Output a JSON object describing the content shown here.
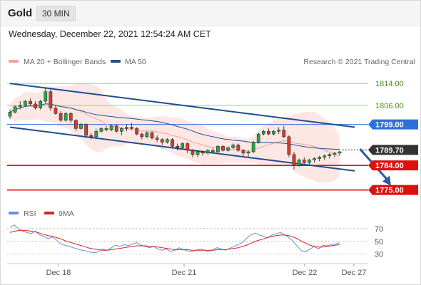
{
  "header": {
    "symbol": "Gold",
    "timeframe": "30 MIN"
  },
  "timestamp": "Wednesday, December 22, 2021 12:54:24 AM CET",
  "legend": {
    "ma_bb": "MA 20 + Bollinger Bands",
    "ma50": "MA 50",
    "credit": "Research © 2021 Trading Central"
  },
  "rsi_legend": {
    "rsi": "RSI",
    "ma": "9MA"
  },
  "colors": {
    "ma_bb": "#f4a29e",
    "ma50": "#1f4e8c",
    "band_fill": "#fde3e1",
    "support": "#e01010",
    "resistance": "#9bcf6b",
    "pivot": "#2e72d9",
    "last": "#333333",
    "arrow": "#2c5aa0",
    "rsi": "#6b8fd6",
    "rsi_ma": "#d62222"
  },
  "chart_data": [
    {
      "type": "candlestick",
      "title": "Gold 30 MIN",
      "x_ticks": [
        "Dec 18",
        "Dec 21",
        "Dec 22",
        "Dec 27"
      ],
      "ylim": [
        1771,
        1819
      ],
      "levels": [
        {
          "label": "1814.00",
          "value": 1814.0,
          "kind": "resistance"
        },
        {
          "label": "1806.00",
          "value": 1806.0,
          "kind": "resistance"
        },
        {
          "label": "1799.00",
          "value": 1799.0,
          "kind": "pivot"
        },
        {
          "label": "1789.70",
          "value": 1789.7,
          "kind": "last"
        },
        {
          "label": "1784.00",
          "value": 1784.0,
          "kind": "support"
        },
        {
          "label": "1775.00",
          "value": 1775.0,
          "kind": "support"
        }
      ],
      "channel": {
        "upper": [
          [
            0,
            1814.0
          ],
          [
            68,
            1798.0
          ]
        ],
        "lower": [
          [
            0,
            1798.0
          ],
          [
            68,
            1782.0
          ]
        ]
      },
      "target_arrow": [
        [
          69,
          1790.0
        ],
        [
          74,
          1775.0
        ]
      ],
      "series": [
        {
          "name": "Gold",
          "ohlc": [
            [
              1802,
              1804.5,
              1801,
              1803.5
            ],
            [
              1803.5,
              1806,
              1803,
              1805.5
            ],
            [
              1805.5,
              1807.5,
              1804.5,
              1806
            ],
            [
              1806,
              1808,
              1805.5,
              1807.5
            ],
            [
              1807.5,
              1808.5,
              1806,
              1806.5
            ],
            [
              1806.5,
              1807.5,
              1804.5,
              1805
            ],
            [
              1805,
              1808,
              1804.5,
              1807.5
            ],
            [
              1807.5,
              1812.5,
              1807,
              1811
            ],
            [
              1811,
              1812,
              1804,
              1805
            ],
            [
              1805,
              1806,
              1802.5,
              1803
            ],
            [
              1803,
              1804,
              1800,
              1800.5
            ],
            [
              1800.5,
              1803.5,
              1800,
              1803
            ],
            [
              1803,
              1803.5,
              1799.5,
              1800.5
            ],
            [
              1800.5,
              1801,
              1796.5,
              1797.5
            ],
            [
              1797.5,
              1799.5,
              1797,
              1799
            ],
            [
              1799,
              1799.5,
              1794,
              1795
            ],
            [
              1795,
              1796,
              1793.5,
              1794.5
            ],
            [
              1794.5,
              1797.5,
              1794,
              1796.5
            ],
            [
              1796.5,
              1798,
              1796,
              1797.5
            ],
            [
              1797.5,
              1798.5,
              1796.5,
              1797
            ],
            [
              1797,
              1799,
              1796.5,
              1798.5
            ],
            [
              1798.5,
              1799,
              1796,
              1796.5
            ],
            [
              1796.5,
              1798,
              1795,
              1797.5
            ],
            [
              1797.5,
              1799,
              1796.5,
              1798
            ],
            [
              1798,
              1799.5,
              1797,
              1797.5
            ],
            [
              1797.5,
              1798,
              1795,
              1795.5
            ],
            [
              1795.5,
              1796,
              1793.5,
              1794.5
            ],
            [
              1794.5,
              1796.5,
              1794,
              1796
            ],
            [
              1796,
              1796.5,
              1793.5,
              1794
            ],
            [
              1794,
              1795,
              1792.5,
              1793.5
            ],
            [
              1793.5,
              1794,
              1791.5,
              1792.5
            ],
            [
              1792.5,
              1794,
              1792,
              1793.5
            ],
            [
              1793.5,
              1794,
              1790.5,
              1791
            ],
            [
              1791,
              1792,
              1789.5,
              1790.5
            ],
            [
              1790.5,
              1792.5,
              1790,
              1792
            ],
            [
              1792,
              1792.5,
              1788.5,
              1789.5
            ],
            [
              1789.5,
              1790,
              1787,
              1788
            ],
            [
              1788,
              1789.5,
              1787,
              1789
            ],
            [
              1789,
              1789.5,
              1787.5,
              1788.5
            ],
            [
              1788.5,
              1790,
              1788,
              1789.5
            ],
            [
              1789.5,
              1790.5,
              1788.5,
              1789
            ],
            [
              1789,
              1791.5,
              1788.5,
              1791
            ],
            [
              1791,
              1791.5,
              1789,
              1789.5
            ],
            [
              1789.5,
              1791,
              1789,
              1790.5
            ],
            [
              1790.5,
              1792,
              1790,
              1791.5
            ],
            [
              1791.5,
              1792,
              1789,
              1789.5
            ],
            [
              1789.5,
              1790,
              1787.5,
              1788.5
            ],
            [
              1788.5,
              1789.5,
              1787,
              1789
            ],
            [
              1789,
              1793,
              1788.5,
              1792.5
            ],
            [
              1792.5,
              1796,
              1792,
              1795.5
            ],
            [
              1795.5,
              1797,
              1795,
              1796.5
            ],
            [
              1796.5,
              1797.5,
              1795,
              1795.5
            ],
            [
              1795.5,
              1797,
              1795,
              1796.5
            ],
            [
              1796.5,
              1798,
              1795.5,
              1797
            ],
            [
              1797,
              1798.5,
              1794,
              1794.5
            ],
            [
              1794.5,
              1795,
              1787,
              1788
            ],
            [
              1788,
              1789,
              1782.5,
              1784
            ],
            [
              1784,
              1786.5,
              1783.5,
              1786
            ],
            [
              1786,
              1787,
              1784.5,
              1785
            ],
            [
              1785,
              1786.5,
              1784,
              1786
            ],
            [
              1786,
              1787,
              1785,
              1786.5
            ],
            [
              1786.5,
              1787.5,
              1785.5,
              1787
            ],
            [
              1787,
              1788,
              1786,
              1787.5
            ],
            [
              1787.5,
              1788.5,
              1786.5,
              1788
            ],
            [
              1788,
              1789,
              1787,
              1788.5
            ],
            [
              1788.5,
              1789.5,
              1787.5,
              1789
            ]
          ]
        }
      ]
    },
    {
      "type": "line",
      "title": "RSI",
      "y_ticks": [
        70,
        50,
        30
      ],
      "ylim": [
        15,
        80
      ],
      "series": [
        {
          "name": "RSI",
          "values": [
            72,
            76,
            70,
            66,
            64,
            62,
            66,
            60,
            58,
            54,
            57,
            52,
            46,
            44,
            42,
            40,
            38,
            36,
            35,
            33,
            32,
            34,
            38,
            36,
            40,
            44,
            42,
            45,
            43,
            46,
            48,
            44,
            42,
            40,
            42,
            38,
            36,
            38,
            34,
            36,
            40,
            37,
            35,
            34,
            36,
            38,
            36,
            34,
            37,
            40,
            38,
            36,
            39,
            42,
            45,
            48,
            55,
            60,
            63,
            60,
            58,
            56,
            60,
            62,
            64,
            60,
            56,
            50,
            42,
            35,
            34,
            38,
            42,
            38,
            44,
            43,
            45,
            46,
            48
          ]
        },
        {
          "name": "9MA",
          "values": [
            64,
            66,
            67,
            67,
            67,
            66,
            65,
            63,
            61,
            59,
            58,
            56,
            54,
            51,
            49,
            47,
            45,
            43,
            41,
            39,
            38,
            37,
            36,
            36,
            37,
            38,
            39,
            40,
            41,
            42,
            43,
            43,
            43,
            42,
            42,
            41,
            40,
            39,
            38,
            37,
            37,
            37,
            37,
            36,
            36,
            36,
            36,
            36,
            36,
            37,
            37,
            37,
            38,
            39,
            40,
            42,
            44,
            47,
            50,
            52,
            54,
            56,
            58,
            59,
            60,
            60,
            59,
            57,
            54,
            50,
            47,
            44,
            42,
            41,
            41,
            42,
            43,
            44,
            45
          ]
        }
      ]
    }
  ]
}
